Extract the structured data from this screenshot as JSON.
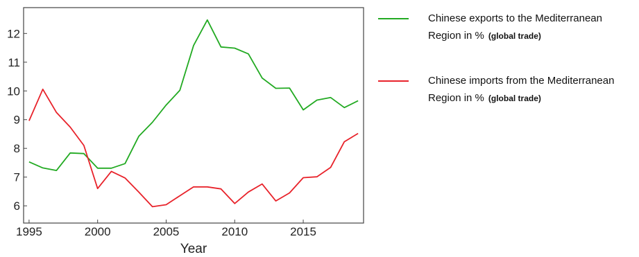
{
  "chart_data": {
    "type": "line",
    "title": "",
    "xlabel": "Year",
    "ylabel": "",
    "xlim": [
      1994.6,
      2019.4
    ],
    "ylim": [
      5.4,
      12.9
    ],
    "xticks": [
      1995,
      2000,
      2005,
      2010,
      2015
    ],
    "yticks": [
      6,
      7,
      8,
      9,
      10,
      11,
      12
    ],
    "grid": false,
    "legend_position": "right",
    "x": [
      1995,
      1996,
      1997,
      1998,
      1999,
      2000,
      2001,
      2002,
      2003,
      2004,
      2005,
      2006,
      2007,
      2008,
      2009,
      2010,
      2011,
      2012,
      2013,
      2014,
      2015,
      2016,
      2017,
      2018,
      2019
    ],
    "series": [
      {
        "name": "Chinese exports to the Mediterranean Region in %",
        "note": "(global trade)",
        "color": "#22aa22",
        "values": [
          7.53,
          7.32,
          7.23,
          7.84,
          7.82,
          7.31,
          7.31,
          7.47,
          8.42,
          8.91,
          9.51,
          10.02,
          11.58,
          12.47,
          11.53,
          11.49,
          11.29,
          10.45,
          10.09,
          10.1,
          9.34,
          9.68,
          9.77,
          9.42,
          9.66
        ]
      },
      {
        "name": "Chinese imports from the Mediterranean Region in %",
        "note": "(global trade)",
        "color": "#e8222a",
        "values": [
          8.96,
          10.06,
          9.25,
          8.74,
          8.1,
          6.6,
          7.2,
          6.97,
          6.48,
          5.97,
          6.04,
          6.35,
          6.66,
          6.66,
          6.59,
          6.08,
          6.48,
          6.76,
          6.17,
          6.45,
          6.98,
          7.01,
          7.34,
          8.23,
          8.52
        ]
      }
    ]
  }
}
